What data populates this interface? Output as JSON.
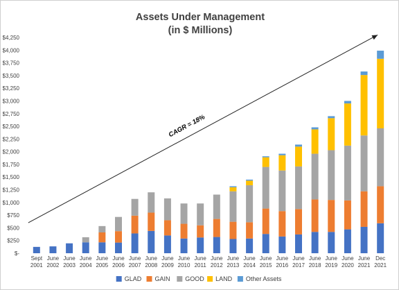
{
  "chart_data": {
    "type": "bar",
    "stacked": true,
    "title": "Assets Under Management",
    "subtitle": "(in $ Millions)",
    "categories": [
      [
        "Sept",
        "2001"
      ],
      [
        "June",
        "2002"
      ],
      [
        "June",
        "2003"
      ],
      [
        "June",
        "2004"
      ],
      [
        "June",
        "2005"
      ],
      [
        "June",
        "2006"
      ],
      [
        "June",
        "2007"
      ],
      [
        "June",
        "2008"
      ],
      [
        "June",
        "2009"
      ],
      [
        "June",
        "2010"
      ],
      [
        "June",
        "2011"
      ],
      [
        "June",
        "2012"
      ],
      [
        "June",
        "2013"
      ],
      [
        "June",
        "2014"
      ],
      [
        "June",
        "2015"
      ],
      [
        "June",
        "2016"
      ],
      [
        "June",
        "2017"
      ],
      [
        "June",
        "2018"
      ],
      [
        "June",
        "2019"
      ],
      [
        "June",
        "2020"
      ],
      [
        "June",
        "2021"
      ],
      [
        "Dec",
        "2021"
      ]
    ],
    "series": [
      {
        "name": "GLAD",
        "color": "#4472c4",
        "values": [
          125,
          135,
          195,
          215,
          215,
          210,
          390,
          440,
          350,
          290,
          310,
          320,
          280,
          290,
          380,
          330,
          370,
          420,
          420,
          470,
          520,
          590
        ]
      },
      {
        "name": "GAIN",
        "color": "#ed7d31",
        "values": [
          0,
          0,
          0,
          0,
          195,
          225,
          350,
          360,
          300,
          290,
          240,
          355,
          340,
          320,
          500,
          500,
          500,
          640,
          630,
          570,
          700,
          730
        ]
      },
      {
        "name": "GOOD",
        "color": "#a5a5a5",
        "values": [
          0,
          0,
          0,
          100,
          125,
          280,
          330,
          400,
          430,
          400,
          430,
          480,
          600,
          730,
          820,
          800,
          840,
          900,
          980,
          1080,
          1100,
          1140
        ]
      },
      {
        "name": "LAND",
        "color": "#ffc000",
        "values": [
          0,
          0,
          0,
          0,
          0,
          0,
          0,
          0,
          0,
          0,
          0,
          0,
          80,
          90,
          190,
          300,
          390,
          480,
          630,
          830,
          1190,
          1370
        ]
      },
      {
        "name": "Other Assets",
        "color": "#5b9bd5",
        "values": [
          0,
          0,
          0,
          0,
          0,
          0,
          0,
          0,
          0,
          0,
          0,
          0,
          20,
          20,
          20,
          30,
          40,
          40,
          40,
          50,
          70,
          160
        ]
      }
    ],
    "y_ticks": [
      "$-",
      "$250",
      "$500",
      "$750",
      "$1,000",
      "$1,250",
      "$1,500",
      "$1,750",
      "$2,000",
      "$2,250",
      "$2,500",
      "$2,750",
      "$3,000",
      "$3,250",
      "$3,500",
      "$3,750",
      "$4,000",
      "$4,250"
    ],
    "ylim": [
      0,
      4250
    ],
    "grid": false,
    "legend_position": "bottom",
    "annotation": {
      "text": "CAGR = 18%",
      "arrow_from": {
        "category_index": 0,
        "y": 600
      },
      "arrow_to": {
        "category_index": 21,
        "y": 4300
      }
    }
  }
}
